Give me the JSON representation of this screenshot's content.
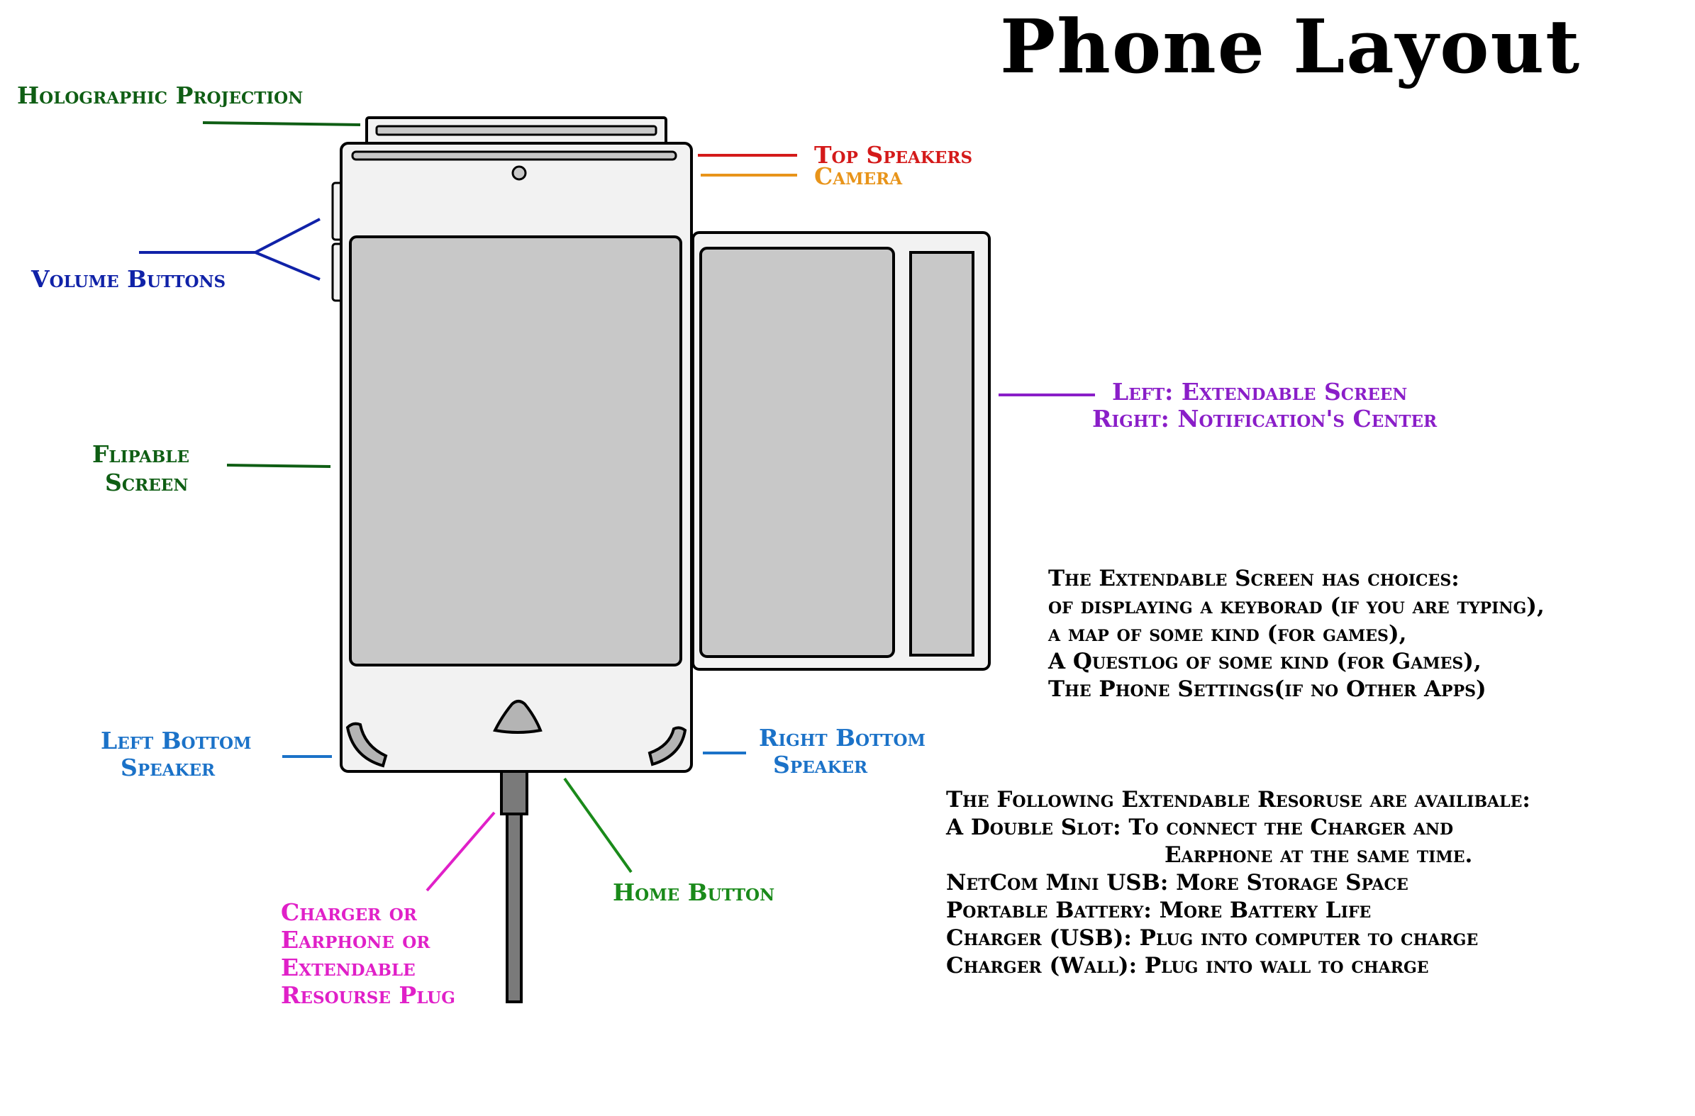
{
  "title": "Phone Layout",
  "labels": {
    "holographic": "Holographic Projection",
    "top_speakers": "Top Speakers",
    "camera": "Camera",
    "volume": "Volume Buttons",
    "extendable_line1": "Left: Extendable Screen",
    "extendable_line2": "Right: Notification's Center",
    "flipable_line1": "Flipable",
    "flipable_line2": "Screen",
    "left_speaker_line1": "Left Bottom",
    "left_speaker_line2": "Speaker",
    "right_speaker_line1": "Right Bottom",
    "right_speaker_line2": "Speaker",
    "home_button": "Home Button",
    "plug_lines": [
      "Charger or",
      "Earphone or",
      "Extendable",
      "Resourse Plug"
    ]
  },
  "notes": {
    "extendable_screen": [
      "The Extendable Screen has choices:",
      "of displaying a keyborad (if you are typing),",
      "a map of some kind (for games),",
      "A Questlog of some kind (for Games),",
      "The Phone Settings(if no Other Apps)"
    ],
    "resources": [
      "The Following Extendable Resoruse are availibale:",
      "A Double Slot: To connect the Charger and",
      "Earphone at the same time.",
      "NetCom Mini USB: More Storage Space",
      "Portable Battery: More Battery Life",
      "Charger (USB): Plug into computer to charge",
      "Charger (Wall): Plug into wall to charge"
    ]
  },
  "colors": {
    "green": "#0f5e14",
    "red": "#d41a1a",
    "orange": "#e8941a",
    "blue": "#1022a8",
    "purple": "#8a1ec8",
    "lightblue": "#1b72c8",
    "brightgreen": "#1a8a1a",
    "magenta": "#e020c8",
    "screen": "#c8c8c8",
    "body": "#f2f2f2"
  }
}
